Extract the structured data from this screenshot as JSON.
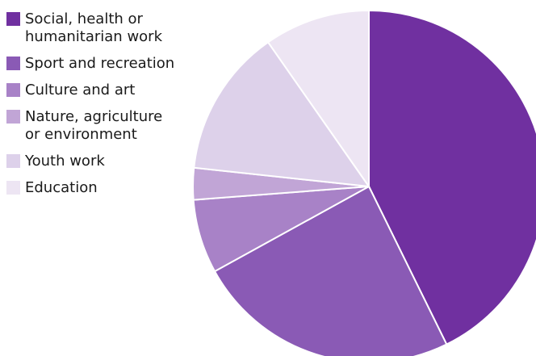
{
  "chart_data": {
    "type": "pie",
    "series": [
      {
        "categories": [
          "Social, health or\nhumanitarian work",
          "Sport and recreation",
          "Culture and art",
          "Nature, agriculture\nor environment",
          "Youth work",
          "Education"
        ],
        "values": [
          44,
          25,
          7,
          3,
          14,
          10
        ],
        "colors": [
          "#7030a0",
          "#8a5ab5",
          "#a882c7",
          "#c1a5d6",
          "#ddd1ea",
          "#ede5f3"
        ]
      }
    ],
    "legend_position": "top-left",
    "start_angle": "12 o'clock",
    "direction": "clockwise",
    "slice_border_color": "#ffffff"
  }
}
